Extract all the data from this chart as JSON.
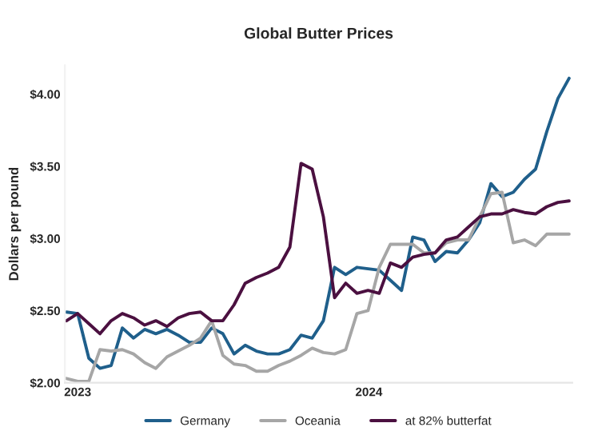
{
  "chart_data": {
    "type": "line",
    "title": "Global Butter Prices",
    "ylabel": "Dollars per pound",
    "x": [
      "2022-12-18",
      "2023-01-01",
      "2023-01-15",
      "2023-01-29",
      "2023-02-12",
      "2023-02-26",
      "2023-03-12",
      "2023-03-26",
      "2023-04-09",
      "2023-04-23",
      "2023-05-07",
      "2023-05-21",
      "2023-06-04",
      "2023-06-18",
      "2023-07-02",
      "2023-07-16",
      "2023-07-30",
      "2023-08-13",
      "2023-08-27",
      "2023-09-10",
      "2023-09-24",
      "2023-10-08",
      "2023-10-22",
      "2023-11-05",
      "2023-11-19",
      "2023-12-03",
      "2023-12-17",
      "2023-12-31",
      "2024-01-14",
      "2024-01-28",
      "2024-02-11",
      "2024-02-25",
      "2024-03-10",
      "2024-03-24",
      "2024-04-07",
      "2024-04-21",
      "2024-05-05",
      "2024-05-19",
      "2024-06-02",
      "2024-06-16",
      "2024-06-30",
      "2024-07-14",
      "2024-07-28",
      "2024-08-11",
      "2024-08-25",
      "2024-09-08"
    ],
    "xlim": [
      "2022-12-16",
      "2024-09-12"
    ],
    "xticks": [
      {
        "value": "2023-01-01",
        "label": "2023"
      },
      {
        "value": "2024-01-01",
        "label": "2024"
      }
    ],
    "ylim": [
      2,
      4.2
    ],
    "yticks": [
      {
        "value": 2,
        "label": "$2.00"
      },
      {
        "value": 2.5,
        "label": "$2.50"
      },
      {
        "value": 3,
        "label": "$3.00"
      },
      {
        "value": 3.5,
        "label": "$3.50"
      },
      {
        "value": 4,
        "label": "$4.00"
      }
    ],
    "grid": false,
    "legend": "bottom",
    "marker": "none",
    "line_style": "solid",
    "series": [
      {
        "name": "Germany",
        "color": "#1f5f8b",
        "values": [
          2.49,
          2.48,
          2.17,
          2.1,
          2.12,
          2.38,
          2.31,
          2.37,
          2.34,
          2.37,
          2.33,
          2.28,
          2.28,
          2.38,
          2.34,
          2.2,
          2.26,
          2.22,
          2.2,
          2.2,
          2.23,
          2.33,
          2.31,
          2.43,
          2.8,
          2.75,
          2.8,
          2.79,
          2.78,
          2.71,
          2.64,
          3.01,
          2.99,
          2.84,
          2.91,
          2.9,
          2.99,
          3.11,
          3.38,
          3.29,
          3.32,
          3.41,
          3.48,
          3.74,
          3.97,
          4.11
        ]
      },
      {
        "name": "Oceania",
        "color": "#a6a6a6",
        "values": [
          2.03,
          2.01,
          2.01,
          2.23,
          2.22,
          2.23,
          2.2,
          2.14,
          2.1,
          2.18,
          2.22,
          2.26,
          2.31,
          2.43,
          2.19,
          2.13,
          2.12,
          2.08,
          2.08,
          2.12,
          2.15,
          2.19,
          2.24,
          2.21,
          2.2,
          2.23,
          2.48,
          2.5,
          2.8,
          2.96,
          2.96,
          2.96,
          2.9,
          2.9,
          2.97,
          2.99,
          2.99,
          3.15,
          3.31,
          3.32,
          2.97,
          2.99,
          2.95,
          3.03,
          3.03,
          3.03
        ]
      },
      {
        "name": "at 82% butterfat",
        "color": "#4b1040",
        "values": [
          2.43,
          2.48,
          2.41,
          2.34,
          2.43,
          2.48,
          2.45,
          2.4,
          2.43,
          2.39,
          2.45,
          2.48,
          2.49,
          2.43,
          2.43,
          2.54,
          2.69,
          2.73,
          2.76,
          2.8,
          2.94,
          3.52,
          3.48,
          3.15,
          2.59,
          2.69,
          2.62,
          2.64,
          2.62,
          2.83,
          2.8,
          2.87,
          2.89,
          2.9,
          2.99,
          3.01,
          3.08,
          3.15,
          3.17,
          3.17,
          3.2,
          3.18,
          3.17,
          3.22,
          3.25,
          3.26
        ]
      }
    ]
  }
}
